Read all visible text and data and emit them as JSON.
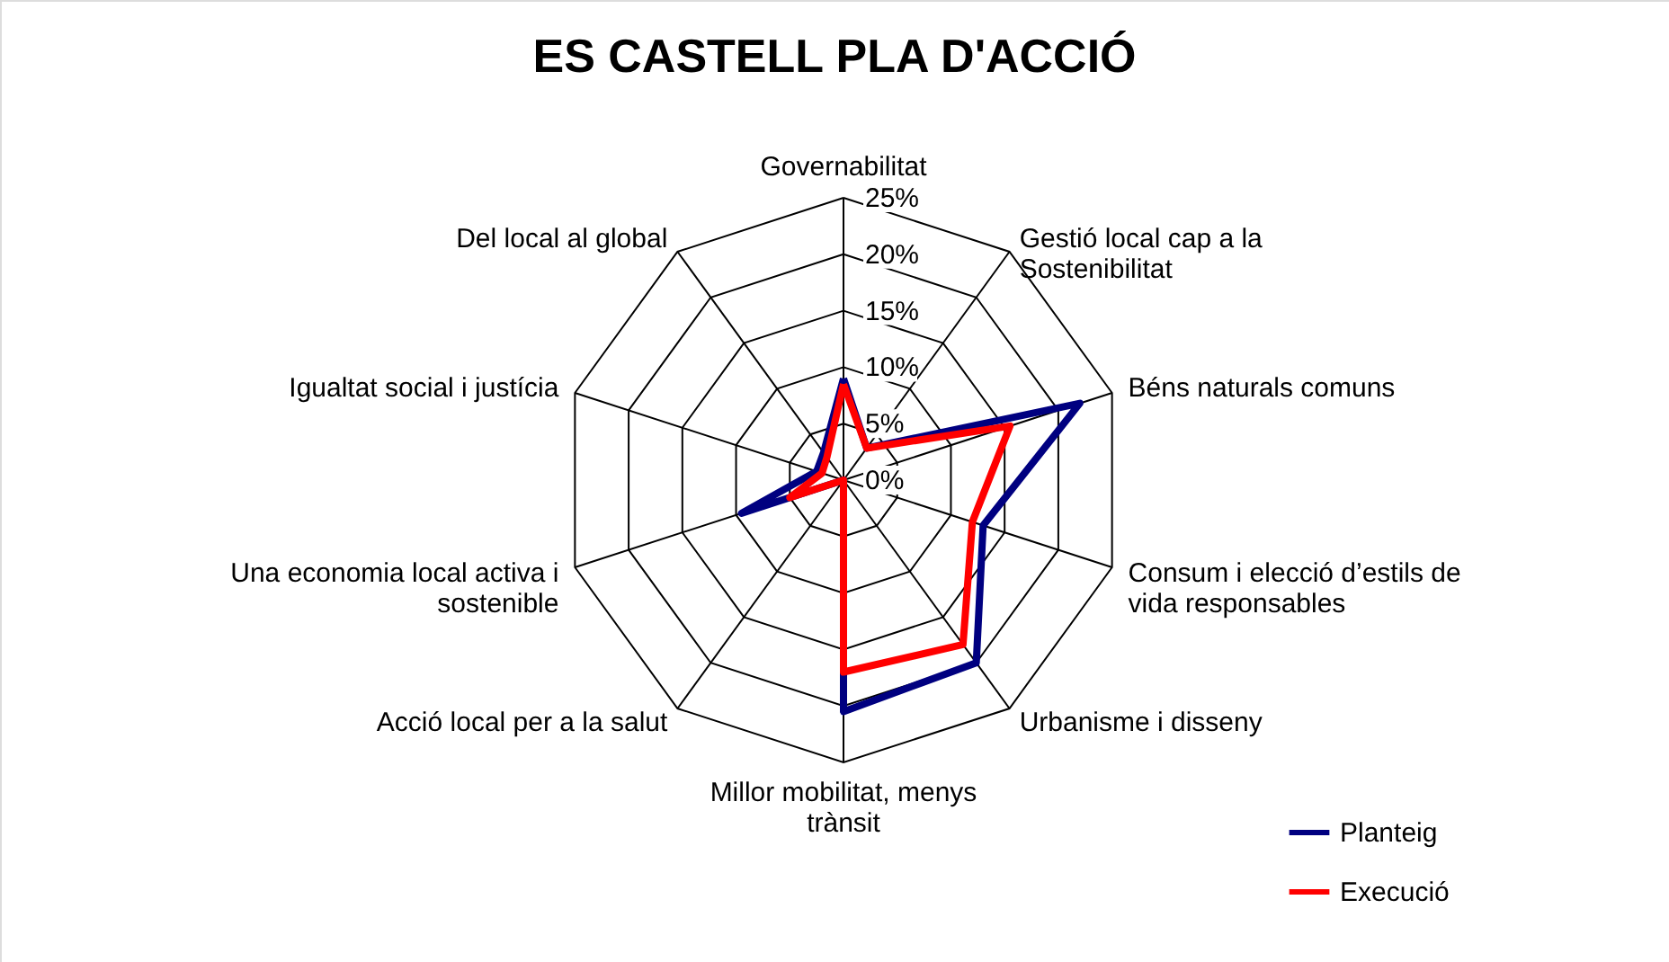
{
  "chart_data": {
    "type": "radar",
    "title": "ES CASTELL PLA D'ACCIÓ",
    "categories": [
      "Governabilitat",
      "Gestió local cap a la Sostenibilitat",
      "Béns naturals comuns",
      "Consum i elecció d’estils de vida responsables",
      "Urbanisme i disseny",
      "Millor mobilitat, menys trànsit",
      "Acció local per a la salut",
      "Una economia local activa i sostenible",
      "Igualtat social i justícia",
      "Del local al global"
    ],
    "series": [
      {
        "name": "Planteig",
        "color": "#000080",
        "values": [
          9,
          3.5,
          22,
          13,
          20,
          20.5,
          0,
          9.5,
          2.5,
          3
        ]
      },
      {
        "name": "Execució",
        "color": "#ff0000",
        "values": [
          8.5,
          3.5,
          15.5,
          12,
          18,
          17,
          0,
          5,
          2,
          2.5
        ]
      }
    ],
    "ylim": [
      0,
      25
    ],
    "yticks": [
      {
        "value": 0,
        "label": "0%"
      },
      {
        "value": 5,
        "label": "5%"
      },
      {
        "value": 10,
        "label": "10%"
      },
      {
        "value": 15,
        "label": "15%"
      },
      {
        "value": 20,
        "label": "20%"
      },
      {
        "value": 25,
        "label": "25%"
      }
    ],
    "grid": true,
    "legend": "bottom right"
  }
}
